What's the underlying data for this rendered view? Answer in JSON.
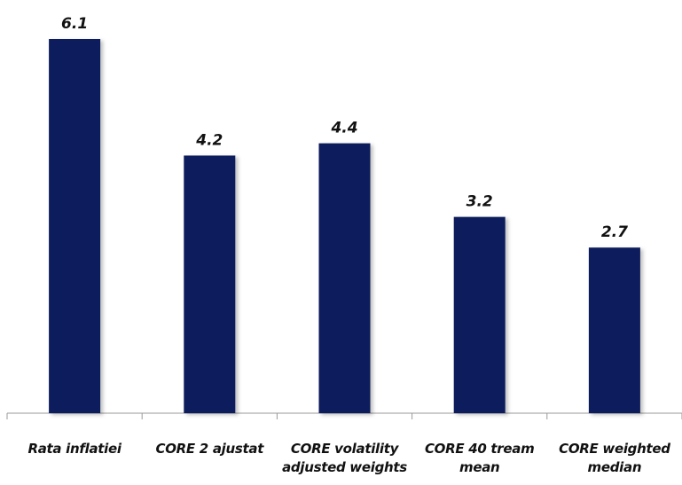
{
  "chart_data": {
    "type": "bar",
    "categories": [
      "Rata inflatiei",
      "CORE 2 ajustat",
      "CORE volatility adjusted weights",
      "CORE 40 tream mean",
      "CORE weighted median"
    ],
    "values": [
      6.1,
      4.2,
      4.4,
      3.2,
      2.7
    ],
    "color": "#0c1f5c"
  }
}
